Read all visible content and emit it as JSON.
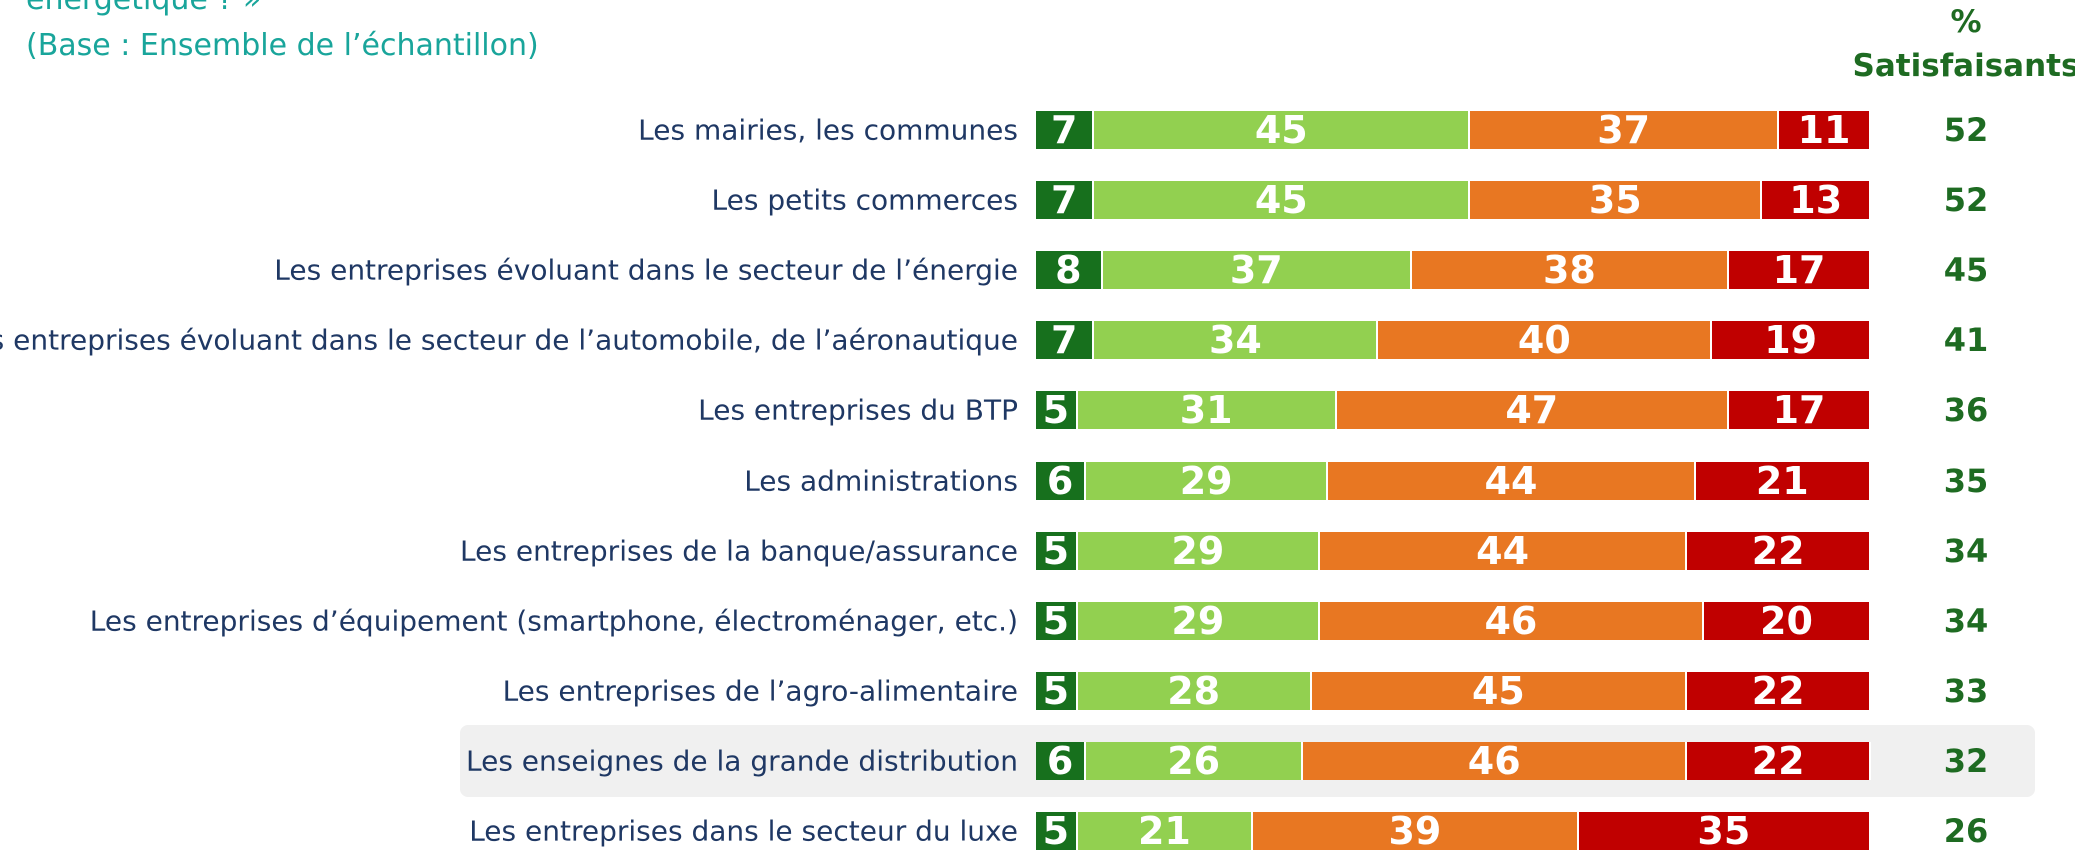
{
  "chart_data": {
    "type": "stacked_bar_horizontal",
    "title": "énergétique ? »",
    "subtitle": "(Base : Ensemble de l’échantillon)",
    "column_title": "% Satisfaisants",
    "categories": [
      "Les mairies, les communes",
      "Les petits commerces",
      "Les entreprises évoluant dans le secteur de l’énergie",
      "Les entreprises évoluant dans le secteur de l’automobile, de l’aéronautique",
      "Les entreprises du BTP",
      "Les administrations",
      "Les entreprises de la banque/assurance",
      "Les entreprises d’équipement (smartphone, électroménager, etc.)",
      "Les entreprises de l’agro-alimentaire",
      "Les enseignes de la grande distribution",
      "Les entreprises dans le secteur du luxe"
    ],
    "series": [
      {
        "color": "#17701d",
        "values": [
          7,
          7,
          8,
          7,
          5,
          6,
          5,
          5,
          5,
          6,
          5
        ]
      },
      {
        "color": "#92d050",
        "values": [
          45,
          45,
          37,
          34,
          31,
          29,
          29,
          29,
          28,
          26,
          21
        ]
      },
      {
        "color": "#e87722",
        "values": [
          37,
          35,
          38,
          40,
          47,
          44,
          44,
          46,
          45,
          46,
          39
        ]
      },
      {
        "color": "#c00000",
        "values": [
          11,
          13,
          17,
          19,
          17,
          21,
          22,
          20,
          22,
          22,
          35
        ]
      }
    ],
    "satisfaisants": [
      52,
      52,
      45,
      41,
      36,
      35,
      34,
      34,
      33,
      32,
      26
    ],
    "xlim": [
      0,
      100
    ],
    "highlighted_row": 9
  }
}
